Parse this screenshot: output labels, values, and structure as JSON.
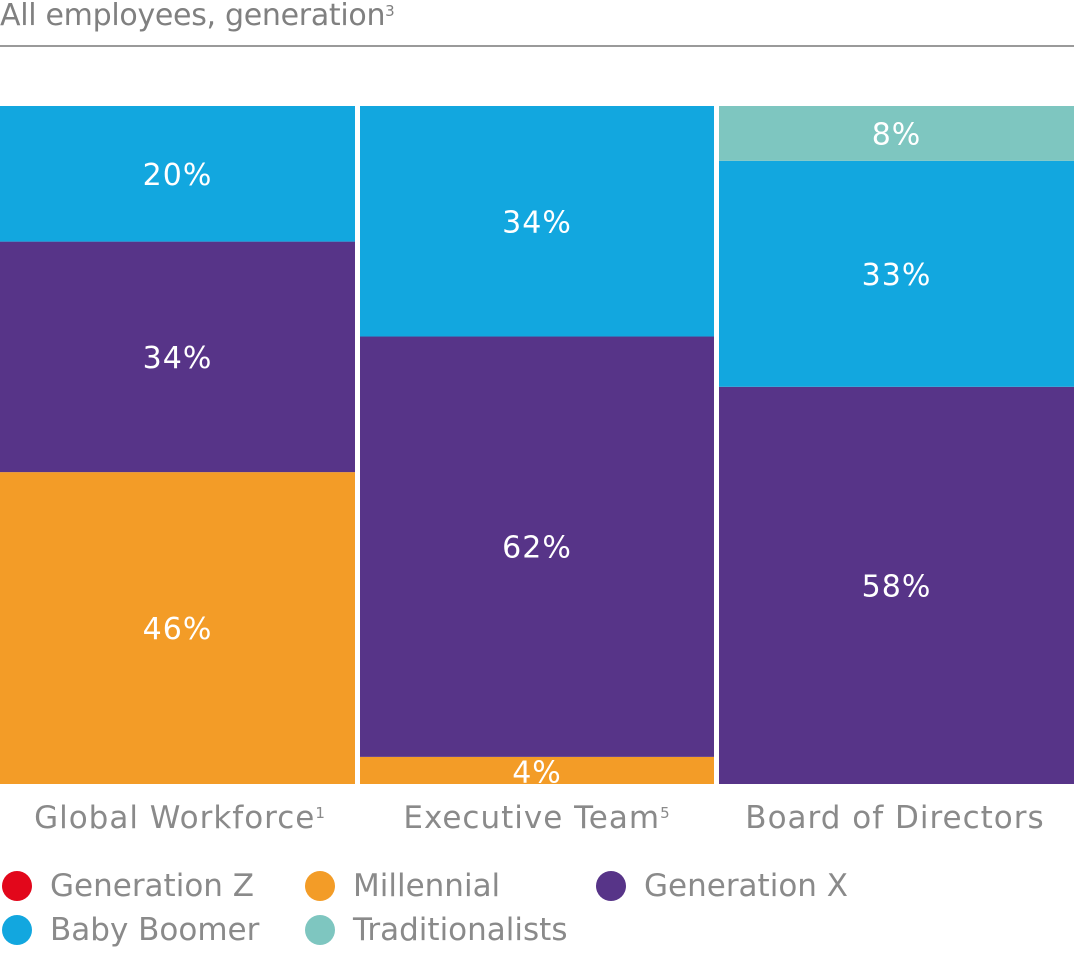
{
  "chart_data": {
    "type": "bar",
    "stacked": true,
    "normalized": true,
    "title": "All employees, generation",
    "title_footnote": "3",
    "xlabel": "",
    "ylabel": "",
    "ylim": [
      0,
      100
    ],
    "grid": false,
    "legend_position": "bottom",
    "categories": [
      {
        "label": "Global Workforce",
        "footnote": "1"
      },
      {
        "label": "Executive Team",
        "footnote": "5"
      },
      {
        "label": "Board of Directors",
        "footnote": ""
      }
    ],
    "series": [
      {
        "name": "Generation Z",
        "color": "#e2071b",
        "values": [
          0,
          0,
          0
        ]
      },
      {
        "name": "Millennial",
        "color": "#f39c27",
        "values": [
          46,
          4,
          0
        ]
      },
      {
        "name": "Generation X",
        "color": "#573488",
        "values": [
          34,
          62,
          58
        ]
      },
      {
        "name": "Baby Boomer",
        "color": "#12a7df",
        "values": [
          20,
          34,
          33
        ]
      },
      {
        "name": "Traditionalists",
        "color": "#7ec6c0",
        "values": [
          0,
          0,
          8
        ]
      }
    ],
    "data_labels": [
      [
        "",
        "46%",
        "34%",
        "20%",
        ""
      ],
      [
        "",
        "4%",
        "62%",
        "34%",
        ""
      ],
      [
        "",
        "",
        "58%",
        "33%",
        "8%"
      ]
    ]
  }
}
